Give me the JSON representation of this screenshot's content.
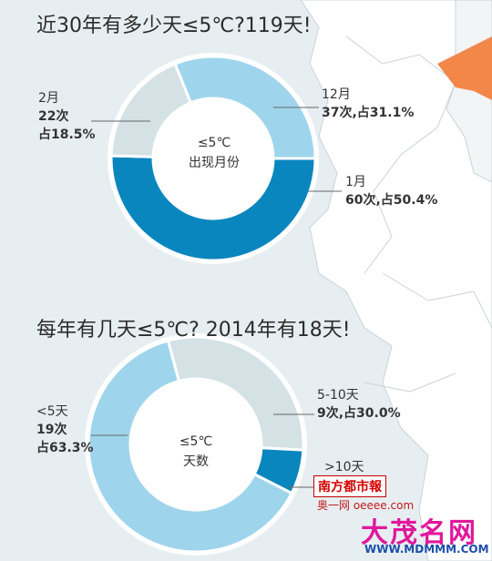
{
  "chart_data": [
    {
      "type": "pie",
      "title": "近30年有多少天≤5℃?119天!",
      "center_label": [
        "≤5℃",
        "出现月份"
      ],
      "slices": [
        {
          "label": "1月",
          "count_label": "60次,占50.4%",
          "value": 60,
          "percent": 50.4,
          "color": "#0a86bf"
        },
        {
          "label": "2月",
          "count_label": "22次",
          "percent_label": "占18.5%",
          "value": 22,
          "percent": 18.5,
          "color": "#d4e1e5"
        },
        {
          "label": "12月",
          "count_label": "37次,占31.1%",
          "value": 37,
          "percent": 31.1,
          "color": "#9fd5ec"
        }
      ]
    },
    {
      "type": "pie",
      "title": "每年有几天≤5℃? 2014年有18天!",
      "center_label": [
        "≤5℃",
        "天数"
      ],
      "slices": [
        {
          "label": "5-10天",
          "count_label": "9次,占30.0%",
          "value": 9,
          "percent": 30.0,
          "color": "#d4e1e5"
        },
        {
          "label": ">10天",
          "value": 2,
          "percent": 6.7,
          "color": "#0a86bf"
        },
        {
          "label": "<5天",
          "count_label": "19次",
          "percent_label": "占63.3%",
          "value": 19,
          "percent": 63.3,
          "color": "#9fd5ec"
        }
      ]
    }
  ],
  "watermark": {
    "paper": "南方都市報",
    "site_small": "奥一网 oeeee.com",
    "brand": "大茂名网",
    "url": "WWW.MDMMM.COM"
  }
}
